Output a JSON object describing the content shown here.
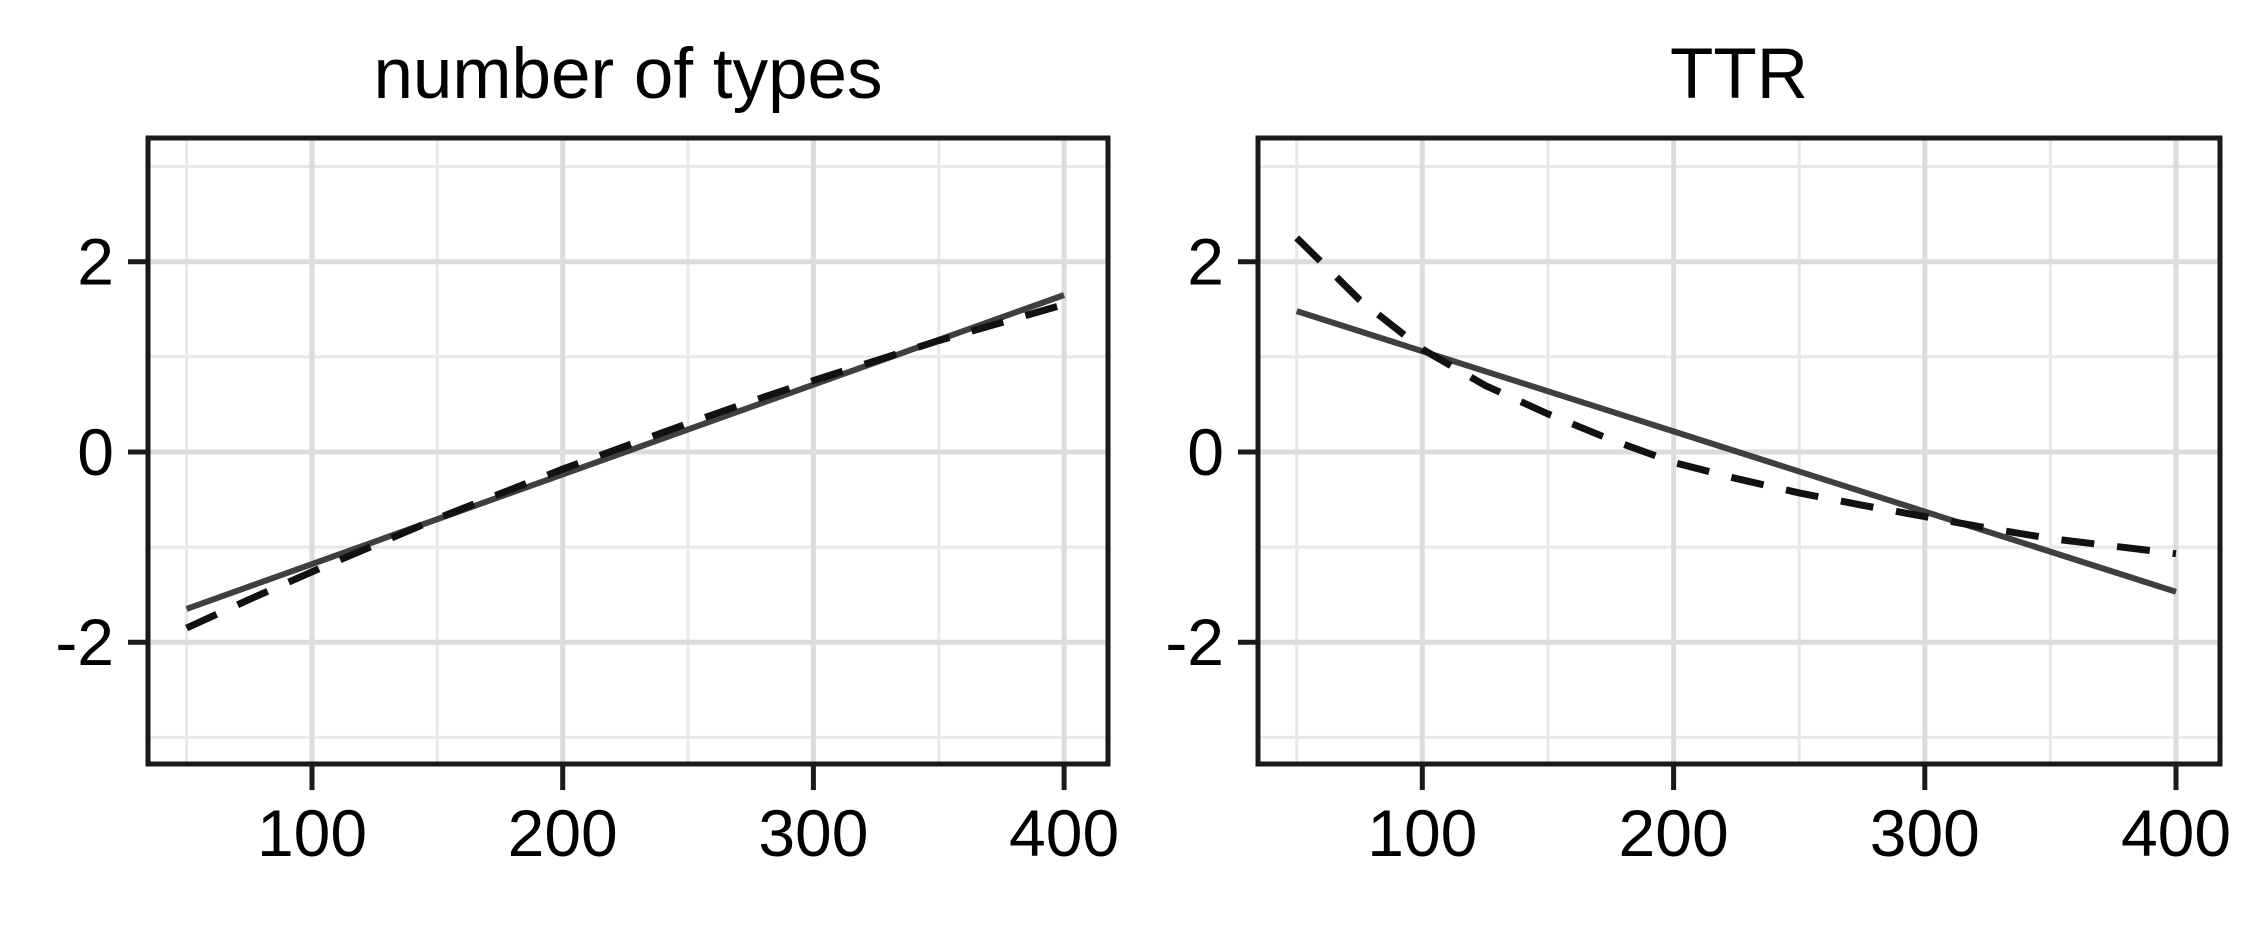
{
  "figure": {
    "background": "#ffffff",
    "text_color": "#000000",
    "panel_border_color": "#1a1a1a",
    "grid_major_color": "#dcdcdc",
    "grid_minor_color": "#e8e8e8",
    "tick_color": "#1a1a1a"
  },
  "chart_data": [
    {
      "type": "line",
      "title": "number of types",
      "x_ticks": [
        100,
        200,
        300,
        400
      ],
      "y_ticks": [
        2,
        0,
        -2
      ],
      "x_minor": [
        50,
        150,
        250,
        350
      ],
      "y_minor": [
        3,
        1,
        -1,
        -3
      ],
      "xlim": [
        34.6,
        417.5
      ],
      "ylim": [
        -3.28,
        3.3
      ],
      "grid": true,
      "legend": "none",
      "series": [
        {
          "dash": "solid",
          "color": "#3f3f3f",
          "width": 6,
          "x": [
            50,
            400
          ],
          "y": [
            -1.65,
            1.65
          ]
        },
        {
          "dash": "dashed",
          "color": "#111111",
          "width": 7,
          "x": [
            50,
            75,
            100,
            125,
            150,
            175,
            200,
            225,
            250,
            275,
            300,
            325,
            350,
            375,
            400
          ],
          "y": [
            -1.85,
            -1.55,
            -1.26,
            -0.98,
            -0.7,
            -0.44,
            -0.18,
            0.06,
            0.3,
            0.53,
            0.75,
            0.96,
            1.17,
            1.36,
            1.55
          ]
        }
      ]
    },
    {
      "type": "line",
      "title": "TTR",
      "x_ticks": [
        100,
        200,
        300,
        400
      ],
      "y_ticks": [
        2,
        0,
        -2
      ],
      "x_minor": [
        50,
        150,
        250,
        350
      ],
      "y_minor": [
        3,
        1,
        -1,
        -3
      ],
      "xlim": [
        34.6,
        417.5
      ],
      "ylim": [
        -3.28,
        3.3
      ],
      "grid": true,
      "legend": "none",
      "series": [
        {
          "dash": "solid",
          "color": "#3f3f3f",
          "width": 6,
          "x": [
            50,
            400
          ],
          "y": [
            1.48,
            -1.47
          ]
        },
        {
          "dash": "dashed",
          "color": "#111111",
          "width": 7,
          "x": [
            50,
            75,
            100,
            125,
            150,
            175,
            200,
            225,
            250,
            275,
            300,
            325,
            350,
            375,
            400
          ],
          "y": [
            2.25,
            1.6,
            1.08,
            0.7,
            0.4,
            0.13,
            -0.11,
            -0.28,
            -0.43,
            -0.56,
            -0.68,
            -0.8,
            -0.91,
            -0.99,
            -1.07
          ]
        }
      ]
    }
  ]
}
